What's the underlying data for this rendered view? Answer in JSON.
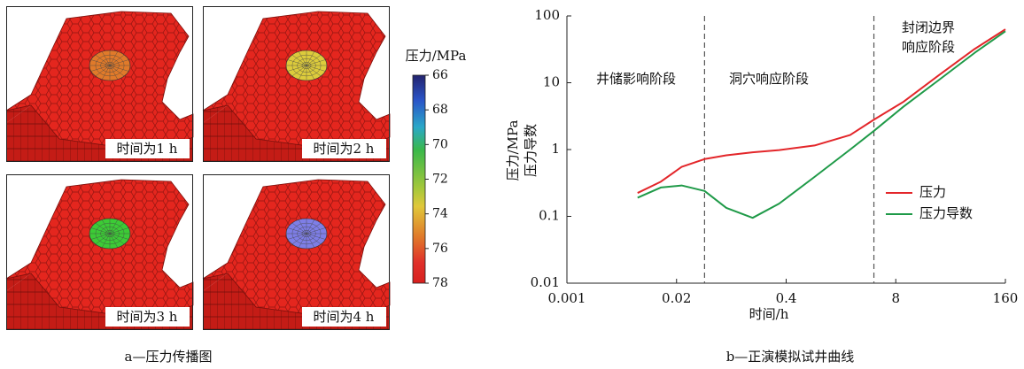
{
  "chart_data": [
    {
      "type": "image-grid",
      "panels": [
        {
          "label": "时间为1 h",
          "color": "#e07a2a"
        },
        {
          "label": "时间为2 h",
          "color": "#dccb3c"
        },
        {
          "label": "时间为3 h",
          "color": "#3ccb36"
        },
        {
          "label": "时间为4 h",
          "color": "#7e7ee6"
        }
      ],
      "colorbar_label": "压力/MPa",
      "ylim": [
        66,
        78
      ],
      "yticks": [
        66,
        68,
        70,
        72,
        74,
        76,
        78
      ],
      "caption": "a—压力传播图"
    },
    {
      "type": "line",
      "xlabel": "时间/h",
      "ylabel": [
        "压力/MPa",
        "压力导数"
      ],
      "x": [
        0.0069,
        0.013,
        0.023,
        0.043,
        0.078,
        0.16,
        0.33,
        0.87,
        2.3,
        4.4,
        9.9,
        26,
        69,
        160
      ],
      "series": [
        {
          "name": "压力",
          "color": "#e3262a",
          "values": [
            0.224,
            0.33,
            0.55,
            0.72,
            0.82,
            0.91,
            0.98,
            1.15,
            1.65,
            2.8,
            5.2,
            13,
            32,
            63
          ]
        },
        {
          "name": "压力导数",
          "color": "#1f9a48",
          "values": [
            0.19,
            0.27,
            0.29,
            0.24,
            0.134,
            0.095,
            0.155,
            0.39,
            1.0,
            1.9,
            4.4,
            11,
            28,
            59
          ]
        }
      ],
      "xlim": [
        0.001,
        160
      ],
      "xticks": [
        0.001,
        0.02,
        0.4,
        8,
        160
      ],
      "ylim": [
        0.01,
        100
      ],
      "yticks": [
        0.01,
        0.1,
        1,
        10,
        100
      ],
      "xscale": "log",
      "yscale": "log",
      "vlines": [
        0.043,
        4.4
      ],
      "annotations": [
        "井储影响阶段",
        "洞穴响应阶段",
        [
          "封闭边界",
          "响应阶段"
        ]
      ],
      "legend": "center right",
      "caption": "b—正演模拟试井曲线"
    }
  ]
}
